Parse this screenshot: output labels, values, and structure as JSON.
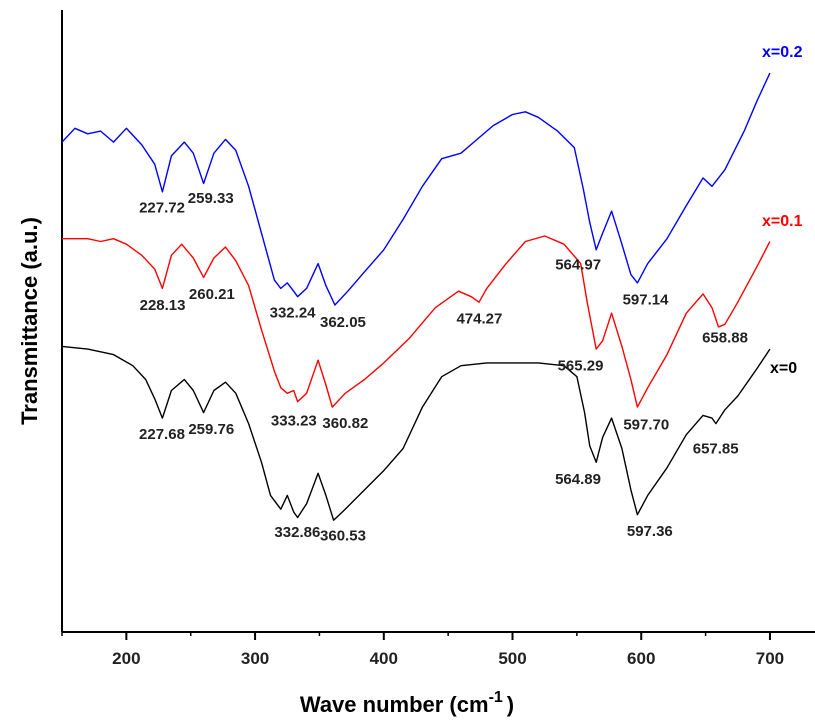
{
  "chart_data": {
    "type": "line",
    "xlabel": "Wave number (cm",
    "xlabel_superscript": "-1",
    "xlabel_suffix": ")",
    "ylabel": "Transmittance (a.u.)",
    "xlim": [
      150,
      735
    ],
    "xticks": [
      200,
      300,
      400,
      500,
      600,
      700
    ],
    "xtick_labels": [
      "200",
      "300",
      "400",
      "500",
      "600",
      "700"
    ],
    "y_ticks_shown": false,
    "grid": false,
    "series": [
      {
        "name": "x=0.2",
        "color": "#0000ff",
        "points": [
          [
            150,
            88
          ],
          [
            160,
            93
          ],
          [
            170,
            91
          ],
          [
            180,
            92
          ],
          [
            190,
            88
          ],
          [
            200,
            93
          ],
          [
            212,
            87
          ],
          [
            222,
            80
          ],
          [
            228,
            70
          ],
          [
            235,
            83
          ],
          [
            245,
            88
          ],
          [
            252,
            84
          ],
          [
            260,
            73
          ],
          [
            268,
            84
          ],
          [
            277,
            89
          ],
          [
            285,
            85
          ],
          [
            295,
            72
          ],
          [
            305,
            55
          ],
          [
            315,
            38
          ],
          [
            320,
            35
          ],
          [
            325,
            37
          ],
          [
            330,
            34
          ],
          [
            333,
            32
          ],
          [
            340,
            35
          ],
          [
            349,
            44
          ],
          [
            355,
            36
          ],
          [
            362,
            29
          ],
          [
            372,
            34
          ],
          [
            385,
            41
          ],
          [
            400,
            49
          ],
          [
            415,
            60
          ],
          [
            430,
            72
          ],
          [
            445,
            82
          ],
          [
            460,
            84
          ],
          [
            470,
            88
          ],
          [
            485,
            94
          ],
          [
            500,
            98
          ],
          [
            510,
            99
          ],
          [
            520,
            97
          ],
          [
            535,
            92
          ],
          [
            548,
            86
          ],
          [
            555,
            71
          ],
          [
            560,
            59
          ],
          [
            565,
            49
          ],
          [
            570,
            55
          ],
          [
            577,
            63
          ],
          [
            585,
            51
          ],
          [
            592,
            40
          ],
          [
            597,
            37
          ],
          [
            605,
            44
          ],
          [
            620,
            53
          ],
          [
            635,
            65
          ],
          [
            648,
            75
          ],
          [
            655,
            72
          ],
          [
            665,
            78
          ],
          [
            680,
            92
          ],
          [
            690,
            103
          ],
          [
            700,
            113
          ]
        ],
        "peaks": [
          {
            "x": 227.72,
            "label": "227.72"
          },
          {
            "x": 259.33,
            "label": "259.33"
          },
          {
            "x": 332.24,
            "label": "332.24"
          },
          {
            "x": 362.05,
            "label": "362.05"
          },
          {
            "x": 564.97,
            "label": "564.97"
          },
          {
            "x": 597.14,
            "label": "597.14"
          }
        ]
      },
      {
        "name": "x=0.1",
        "color": "#ff0000",
        "points": [
          [
            150,
            53
          ],
          [
            160,
            53
          ],
          [
            170,
            53
          ],
          [
            180,
            52
          ],
          [
            190,
            53
          ],
          [
            200,
            51
          ],
          [
            212,
            47
          ],
          [
            222,
            42
          ],
          [
            228,
            35
          ],
          [
            235,
            47
          ],
          [
            243,
            51
          ],
          [
            252,
            46
          ],
          [
            260,
            39
          ],
          [
            268,
            46
          ],
          [
            277,
            50
          ],
          [
            285,
            45
          ],
          [
            295,
            36
          ],
          [
            305,
            20
          ],
          [
            315,
            5
          ],
          [
            320,
            -1
          ],
          [
            325,
            -3
          ],
          [
            330,
            -2
          ],
          [
            333,
            -6
          ],
          [
            340,
            -3
          ],
          [
            349,
            9
          ],
          [
            355,
            0
          ],
          [
            360,
            -8
          ],
          [
            370,
            -3
          ],
          [
            385,
            2
          ],
          [
            400,
            8
          ],
          [
            420,
            17
          ],
          [
            440,
            28
          ],
          [
            458,
            34
          ],
          [
            468,
            32
          ],
          [
            474,
            30
          ],
          [
            480,
            35
          ],
          [
            495,
            44
          ],
          [
            510,
            52
          ],
          [
            525,
            54
          ],
          [
            540,
            51
          ],
          [
            553,
            44
          ],
          [
            558,
            30
          ],
          [
            565,
            13
          ],
          [
            570,
            16
          ],
          [
            577,
            26
          ],
          [
            585,
            14
          ],
          [
            592,
            2
          ],
          [
            597,
            -8
          ],
          [
            605,
            -1
          ],
          [
            620,
            11
          ],
          [
            635,
            26
          ],
          [
            648,
            33
          ],
          [
            655,
            28
          ],
          [
            660,
            21
          ],
          [
            665,
            22
          ],
          [
            675,
            30
          ],
          [
            690,
            43
          ],
          [
            700,
            52
          ]
        ],
        "peaks": [
          {
            "x": 228.13,
            "label": "228.13"
          },
          {
            "x": 260.21,
            "label": "260.21"
          },
          {
            "x": 333.23,
            "label": "333.23"
          },
          {
            "x": 360.82,
            "label": "360.82"
          },
          {
            "x": 474.27,
            "label": "474.27"
          },
          {
            "x": 565.29,
            "label": "565.29"
          },
          {
            "x": 597.7,
            "label": "597.70"
          },
          {
            "x": 658.88,
            "label": "658.88"
          }
        ]
      },
      {
        "name": "x=0",
        "color": "#000000",
        "points": [
          [
            150,
            14
          ],
          [
            170,
            13
          ],
          [
            190,
            11
          ],
          [
            205,
            7
          ],
          [
            215,
            2
          ],
          [
            222,
            -5
          ],
          [
            228,
            -12
          ],
          [
            235,
            -2
          ],
          [
            245,
            2
          ],
          [
            252,
            -2
          ],
          [
            260,
            -10
          ],
          [
            268,
            -2
          ],
          [
            277,
            1
          ],
          [
            285,
            -3
          ],
          [
            295,
            -14
          ],
          [
            305,
            -28
          ],
          [
            312,
            -40
          ],
          [
            320,
            -45
          ],
          [
            325,
            -40
          ],
          [
            330,
            -46
          ],
          [
            333,
            -48
          ],
          [
            340,
            -43
          ],
          [
            349,
            -32
          ],
          [
            355,
            -40
          ],
          [
            361,
            -49
          ],
          [
            370,
            -45
          ],
          [
            385,
            -38
          ],
          [
            400,
            -31
          ],
          [
            415,
            -23
          ],
          [
            430,
            -8
          ],
          [
            445,
            3
          ],
          [
            460,
            7
          ],
          [
            480,
            8
          ],
          [
            500,
            8
          ],
          [
            520,
            8
          ],
          [
            540,
            7
          ],
          [
            550,
            3
          ],
          [
            556,
            -10
          ],
          [
            560,
            -22
          ],
          [
            565,
            -28
          ],
          [
            570,
            -19
          ],
          [
            577,
            -12
          ],
          [
            585,
            -23
          ],
          [
            592,
            -38
          ],
          [
            597,
            -47
          ],
          [
            605,
            -40
          ],
          [
            620,
            -30
          ],
          [
            635,
            -18
          ],
          [
            648,
            -11
          ],
          [
            655,
            -12
          ],
          [
            658,
            -14
          ],
          [
            665,
            -9
          ],
          [
            675,
            -4
          ],
          [
            690,
            6
          ],
          [
            700,
            13
          ]
        ],
        "peaks": [
          {
            "x": 227.68,
            "label": "227.68"
          },
          {
            "x": 259.76,
            "label": "259.76"
          },
          {
            "x": 332.86,
            "label": "332.86"
          },
          {
            "x": 360.53,
            "label": "360.53"
          },
          {
            "x": 564.89,
            "label": "564.89"
          },
          {
            "x": 597.36,
            "label": "597.36"
          },
          {
            "x": 657.85,
            "label": "657.85"
          }
        ]
      }
    ]
  }
}
